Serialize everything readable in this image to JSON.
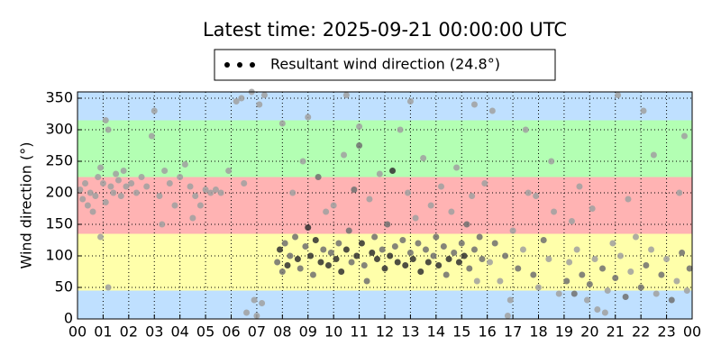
{
  "chart_data": {
    "type": "scatter",
    "title": "Latest time: 2025-09-21 00:00:00 UTC",
    "y_label": "Wind direction (°)",
    "xlim": [
      0,
      24
    ],
    "ylim": [
      0,
      360
    ],
    "xticks": [
      {
        "value": 0,
        "label": "00"
      },
      {
        "value": 1,
        "label": "01"
      },
      {
        "value": 2,
        "label": "02"
      },
      {
        "value": 3,
        "label": "03"
      },
      {
        "value": 4,
        "label": "04"
      },
      {
        "value": 5,
        "label": "05"
      },
      {
        "value": 6,
        "label": "06"
      },
      {
        "value": 7,
        "label": "07"
      },
      {
        "value": 8,
        "label": "08"
      },
      {
        "value": 9,
        "label": "09"
      },
      10,
      11,
      12,
      13,
      14,
      15,
      16,
      17,
      18,
      19,
      20,
      21,
      22,
      23,
      {
        "value": 24,
        "label": "00"
      }
    ],
    "yticks": [
      0,
      50,
      100,
      150,
      200,
      250,
      300,
      350
    ],
    "grid": true,
    "bands": [
      {
        "from": 0,
        "to": 45,
        "color": "#bfe0ff"
      },
      {
        "from": 45,
        "to": 135,
        "color": "#ffffaa"
      },
      {
        "from": 135,
        "to": 225,
        "color": "#ffb3b3"
      },
      {
        "from": 225,
        "to": 315,
        "color": "#b3ffb3"
      },
      {
        "from": 315,
        "to": 360,
        "color": "#bfe0ff"
      }
    ],
    "legend_position": "top",
    "series": [
      {
        "name": "Resultant wind direction (24.8°)",
        "color": "#000000",
        "x": [
          0.1,
          0.2,
          0.3,
          0.4,
          0.5,
          0.6,
          0.7,
          0.8,
          0.9,
          1.0,
          1.1,
          1.2,
          1.3,
          1.4,
          1.5,
          1.6,
          1.7,
          1.8,
          1.9,
          0.9,
          1.2,
          1.1,
          2.1,
          2.3,
          2.5,
          2.7,
          2.9,
          3.0,
          3.2,
          3.4,
          3.6,
          3.8,
          4.0,
          4.2,
          4.4,
          4.6,
          4.8,
          5.0,
          5.2,
          5.4,
          5.6,
          5.9,
          4.5,
          3.3,
          6.2,
          6.4,
          6.6,
          6.8,
          7.0,
          7.1,
          7.2,
          7.3,
          6.9,
          6.5,
          7.8,
          7.9,
          8.0,
          8.1,
          8.2,
          8.3,
          8.4,
          8.5,
          8.6,
          8.7,
          8.8,
          8.9,
          9.0,
          9.1,
          9.2,
          9.3,
          9.4,
          9.5,
          9.6,
          9.7,
          9.8,
          9.9,
          10.0,
          10.1,
          10.2,
          10.3,
          10.4,
          10.5,
          10.6,
          10.7,
          10.8,
          10.9,
          11.0,
          11.1,
          11.2,
          11.3,
          11.4,
          11.5,
          11.6,
          11.7,
          11.8,
          11.9,
          12.0,
          12.1,
          12.2,
          12.3,
          12.4,
          12.5,
          12.6,
          12.7,
          12.8,
          12.9,
          13.0,
          13.1,
          13.2,
          13.3,
          13.4,
          13.5,
          13.6,
          13.7,
          13.8,
          13.9,
          14.0,
          14.1,
          14.2,
          14.3,
          14.4,
          14.5,
          14.6,
          14.7,
          14.8,
          14.9,
          15.0,
          15.1,
          15.2,
          15.3,
          15.4,
          15.5,
          15.6,
          15.7,
          15.8,
          15.9,
          9.0,
          10.5,
          13.0,
          15.5,
          8.0,
          11.0,
          16.1,
          16.3,
          16.5,
          16.7,
          16.9,
          17.0,
          17.2,
          17.4,
          17.6,
          17.8,
          18.0,
          18.2,
          18.4,
          18.6,
          18.8,
          16.2,
          17.5,
          18.5,
          16.8,
          17.9,
          19.1,
          19.2,
          19.4,
          19.5,
          19.7,
          19.9,
          20.0,
          20.2,
          20.3,
          20.5,
          20.7,
          20.9,
          21.0,
          21.2,
          21.4,
          21.6,
          21.8,
          22.0,
          22.2,
          22.4,
          22.6,
          22.8,
          23.0,
          23.2,
          23.4,
          23.6,
          23.8,
          23.9,
          20.1,
          21.1,
          22.1,
          22.5,
          21.5,
          23.5,
          19.6,
          23.7,
          20.6,
          19.3
        ],
        "values": [
          205,
          190,
          215,
          180,
          200,
          170,
          195,
          225,
          240,
          215,
          185,
          300,
          210,
          200,
          230,
          220,
          195,
          235,
          210,
          130,
          50,
          315,
          215,
          200,
          225,
          210,
          290,
          330,
          195,
          235,
          215,
          180,
          225,
          245,
          210,
          195,
          180,
          205,
          200,
          205,
          200,
          235,
          160,
          150,
          345,
          350,
          10,
          360,
          5,
          340,
          25,
          355,
          30,
          215,
          90,
          110,
          75,
          120,
          85,
          100,
          200,
          130,
          95,
          80,
          250,
          115,
          145,
          100,
          70,
          125,
          225,
          90,
          110,
          170,
          85,
          105,
          180,
          95,
          120,
          75,
          260,
          110,
          140,
          90,
          205,
          100,
          275,
          120,
          85,
          60,
          190,
          105,
          130,
          95,
          230,
          110,
          80,
          150,
          100,
          235,
          115,
          90,
          300,
          125,
          85,
          200,
          105,
          95,
          160,
          120,
          75,
          255,
          110,
          90,
          180,
          100,
          130,
          85,
          210,
          115,
          70,
          95,
          170,
          105,
          240,
          90,
          120,
          100,
          150,
          80,
          195,
          110,
          60,
          130,
          95,
          215,
          320,
          355,
          345,
          340,
          310,
          305,
          90,
          120,
          60,
          100,
          30,
          140,
          80,
          110,
          200,
          70,
          50,
          125,
          95,
          170,
          40,
          330,
          300,
          250,
          5,
          195,
          60,
          90,
          40,
          110,
          70,
          30,
          55,
          95,
          15,
          80,
          45,
          120,
          65,
          100,
          35,
          75,
          130,
          50,
          85,
          110,
          40,
          70,
          95,
          30,
          60,
          105,
          45,
          80,
          175,
          355,
          330,
          260,
          190,
          200,
          210,
          290,
          10,
          155
        ],
        "colors": [
          "#a0a0a0",
          "#a0a0a0",
          "#a0a0a0",
          "#a0a0a0",
          "#a0a0a0",
          "#a0a0a0",
          "#a0a0a0",
          "#a0a0a0",
          "#a0a0a0",
          "#a0a0a0",
          "#a0a0a0",
          "#a0a0a0",
          "#a0a0a0",
          "#a0a0a0",
          "#a0a0a0",
          "#a0a0a0",
          "#a0a0a0",
          "#a0a0a0",
          "#a0a0a0",
          "#a0a0a0",
          "#a0a0a0",
          "#a0a0a0",
          "#a0a0a0",
          "#a0a0a0",
          "#a0a0a0",
          "#a0a0a0",
          "#a0a0a0",
          "#a0a0a0",
          "#a0a0a0",
          "#a0a0a0",
          "#a0a0a0",
          "#a0a0a0",
          "#a0a0a0",
          "#a0a0a0",
          "#a0a0a0",
          "#a0a0a0",
          "#a0a0a0",
          "#a0a0a0",
          "#a0a0a0",
          "#a0a0a0",
          "#a0a0a0",
          "#a0a0a0",
          "#a0a0a0",
          "#a0a0a0",
          "#a0a0a0",
          "#a0a0a0",
          "#a0a0a0",
          "#a0a0a0",
          "#a0a0a0",
          "#a0a0a0",
          "#a0a0a0",
          "#a0a0a0",
          "#a0a0a0",
          "#a0a0a0",
          "#707070",
          "#303030",
          "#707070",
          "#707070",
          "#303030",
          "#707070",
          "#a0a0a0",
          "#707070",
          "#303030",
          "#707070",
          "#a0a0a0",
          "#707070",
          "#303030",
          "#303030",
          "#707070",
          "#303030",
          "#707070",
          "#303030",
          "#707070",
          "#a0a0a0",
          "#303030",
          "#707070",
          "#a0a0a0",
          "#303030",
          "#707070",
          "#303030",
          "#a0a0a0",
          "#303030",
          "#707070",
          "#707070",
          "#707070",
          "#303030",
          "#707070",
          "#303030",
          "#707070",
          "#707070",
          "#a0a0a0",
          "#303030",
          "#707070",
          "#303030",
          "#a0a0a0",
          "#707070",
          "#303030",
          "#707070",
          "#303030",
          "#303030",
          "#707070",
          "#303030",
          "#a0a0a0",
          "#707070",
          "#303030",
          "#a0a0a0",
          "#707070",
          "#303030",
          "#a0a0a0",
          "#707070",
          "#303030",
          "#a0a0a0",
          "#707070",
          "#303030",
          "#a0a0a0",
          "#707070",
          "#707070",
          "#303030",
          "#a0a0a0",
          "#707070",
          "#707070",
          "#303030",
          "#a0a0a0",
          "#707070",
          "#a0a0a0",
          "#303030",
          "#707070",
          "#303030",
          "#707070",
          "#707070",
          "#a0a0a0",
          "#707070",
          "#a0a0a0",
          "#707070",
          "#707070",
          "#a0a0a0",
          "#a0a0a0",
          "#a0a0a0",
          "#a0a0a0",
          "#a0a0a0",
          "#a0a0a0",
          "#a0a0a0",
          "#a0a0a0",
          "#707070",
          "#a0a0a0",
          "#707070",
          "#a0a0a0",
          "#a0a0a0",
          "#707070",
          "#a0a0a0",
          "#a0a0a0",
          "#707070",
          "#a0a0a0",
          "#707070",
          "#a0a0a0",
          "#a0a0a0",
          "#a0a0a0",
          "#a0a0a0",
          "#a0a0a0",
          "#a0a0a0",
          "#a0a0a0",
          "#a0a0a0",
          "#707070",
          "#a0a0a0",
          "#707070",
          "#a0a0a0",
          "#707070",
          "#a0a0a0",
          "#707070",
          "#a0a0a0",
          "#a0a0a0",
          "#707070",
          "#a0a0a0",
          "#a0a0a0",
          "#707070",
          "#a0a0a0",
          "#707070",
          "#a0a0a0",
          "#a0a0a0",
          "#707070",
          "#707070",
          "#a0a0a0",
          "#a0a0a0",
          "#707070",
          "#a0a0a0",
          "#707070",
          "#a0a0a0",
          "#707070",
          "#a0a0a0",
          "#707070",
          "#a0a0a0",
          "#a0a0a0",
          "#a0a0a0",
          "#a0a0a0",
          "#a0a0a0",
          "#a0a0a0",
          "#a0a0a0",
          "#a0a0a0",
          "#a0a0a0",
          "#a0a0a0"
        ]
      }
    ]
  }
}
